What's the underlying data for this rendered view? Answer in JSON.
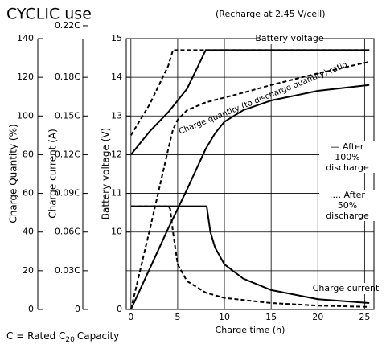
{
  "chart_data": {
    "type": "line",
    "title": "CYCLIC use",
    "subtitle": "(Recharge at 2.45 V/cell)",
    "xlabel": "Charge time (h)",
    "ylabel": "Charge Quantity (%)",
    "y3label": "Charge current (A)",
    "y2label": "Battery voltage (V)",
    "xlim": [
      -0.5,
      26
    ],
    "xticks": [
      0,
      5,
      10,
      15,
      20,
      25
    ],
    "ylim": [
      0,
      140
    ],
    "yticks": [
      0,
      20,
      40,
      60,
      80,
      100,
      120,
      140
    ],
    "y2lim": [
      8,
      15
    ],
    "y2ticks": [
      10,
      11,
      12,
      13,
      14,
      15
    ],
    "y2_origin_label": "0",
    "y3lim": [
      0,
      0.21
    ],
    "y3ticks": [
      0,
      {
        "value": 0.03,
        "label": "0.03C"
      },
      {
        "value": 0.06,
        "label": "0.06C"
      },
      {
        "value": 0.09,
        "label": "0.09C"
      },
      {
        "value": 0.12,
        "label": "0.12C"
      },
      {
        "value": 0.15,
        "label": "0.15C"
      },
      {
        "value": 0.18,
        "label": "0.18C"
      },
      {
        "value": 0.22,
        "label": "0.22C"
      }
    ],
    "grid": true,
    "color": "#000000",
    "annotations": {
      "voltage": "Battery voltage",
      "quantity": "Charge quantity (to discharge quantity) ratio",
      "current": "Charge current"
    },
    "footnote": {
      "text": "C = Rated C",
      "sub": "20",
      "tail": "Capacity"
    },
    "series": [
      {
        "name": "After 100% discharge",
        "style": "solid",
        "voltage": {
          "x": [
            0,
            2,
            4,
            6,
            7,
            8,
            25.5
          ],
          "values": [
            12.0,
            12.6,
            13.1,
            13.7,
            14.2,
            14.7,
            14.7
          ]
        },
        "quantity": {
          "x": [
            0,
            2,
            4,
            6,
            8,
            9,
            10,
            12,
            15,
            20,
            25.5
          ],
          "values": [
            0,
            21,
            42,
            62,
            83,
            91,
            97,
            103,
            108,
            113,
            116
          ]
        },
        "current": {
          "x": [
            0,
            8.1,
            8.5,
            9,
            10,
            12,
            15,
            20,
            25.5
          ],
          "values": [
            0.08,
            0.08,
            0.06,
            0.048,
            0.035,
            0.024,
            0.015,
            0.008,
            0.005
          ]
        }
      },
      {
        "name": "After 50% discharge",
        "style": "dashed",
        "voltage": {
          "x": [
            0,
            1,
            2,
            3,
            4,
            4.5,
            25.5
          ],
          "values": [
            12.5,
            12.9,
            13.3,
            13.8,
            14.3,
            14.7,
            14.7
          ]
        },
        "quantity": {
          "x": [
            0,
            2,
            4,
            4.5,
            5,
            6,
            8,
            12,
            15,
            20,
            25.5
          ],
          "values": [
            0,
            41,
            83,
            93,
            98,
            103,
            107,
            112,
            116,
            122,
            128
          ]
        },
        "current": {
          "x": [
            0,
            4,
            4.2,
            4.5,
            5,
            6,
            8,
            10,
            15,
            20,
            25.5
          ],
          "values": [
            0.08,
            0.08,
            0.078,
            0.06,
            0.035,
            0.022,
            0.013,
            0.009,
            0.005,
            0.003,
            0.002
          ]
        }
      }
    ]
  }
}
